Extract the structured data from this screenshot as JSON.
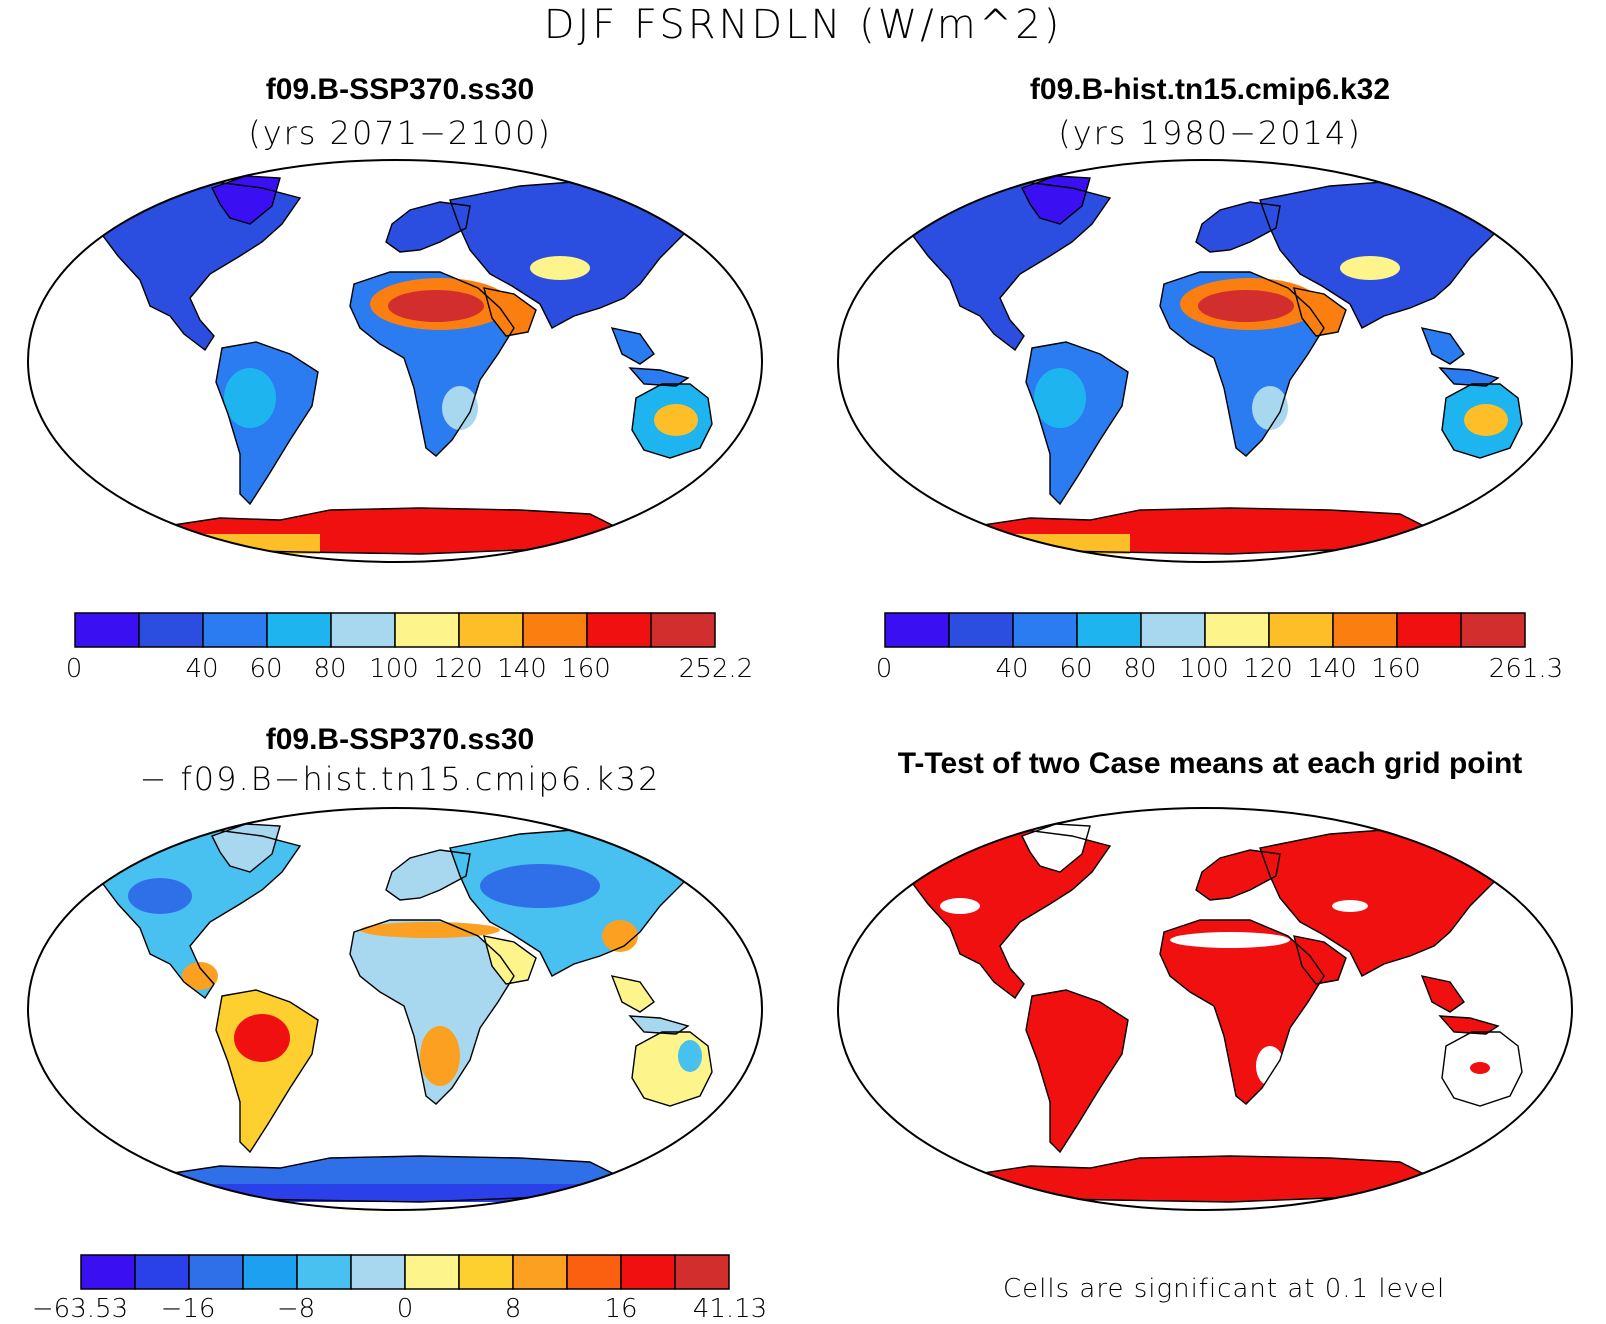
{
  "title": "DJF FSRNDLN (W/m^2)",
  "panels": [
    {
      "id": "case1",
      "title": "f09.B-SSP370.ss30",
      "subtitle": "(yrs 2071−2100)",
      "ticks": [
        "0",
        "40",
        "60",
        "80",
        "100",
        "120",
        "140",
        "160",
        "252.2"
      ]
    },
    {
      "id": "case2",
      "title": "f09.B-hist.tn15.cmip6.k32",
      "subtitle": "(yrs 1980−2014)",
      "ticks": [
        "0",
        "40",
        "60",
        "80",
        "100",
        "120",
        "140",
        "160",
        "261.3"
      ]
    },
    {
      "id": "diff",
      "title": "f09.B-SSP370.ss30",
      "subtitle": "− f09.B−hist.tn15.cmip6.k32",
      "ticks": [
        "−63.53",
        "−16",
        "−8",
        "0",
        "8",
        "16",
        "41.13"
      ]
    },
    {
      "id": "ttest",
      "title": "T-Test of two Case means at each grid point",
      "note": "Cells are significant at 0.1 level"
    }
  ],
  "colors": {
    "abs_scale": [
      "#3a10f2",
      "#2c4ee0",
      "#2a7cf0",
      "#1eb4f0",
      "#a8d8f0",
      "#fdf58c",
      "#fdbe28",
      "#fb7e10",
      "#f01010",
      "#d22e2e"
    ],
    "diff_scale": [
      "#3a10f2",
      "#2a40e8",
      "#2f6fe8",
      "#1ea0f0",
      "#48c0f0",
      "#a8d8f0",
      "#fdf58c",
      "#fdd030",
      "#fba020",
      "#fb6010",
      "#f01010",
      "#d22e2e"
    ],
    "significant": "#f01010"
  }
}
